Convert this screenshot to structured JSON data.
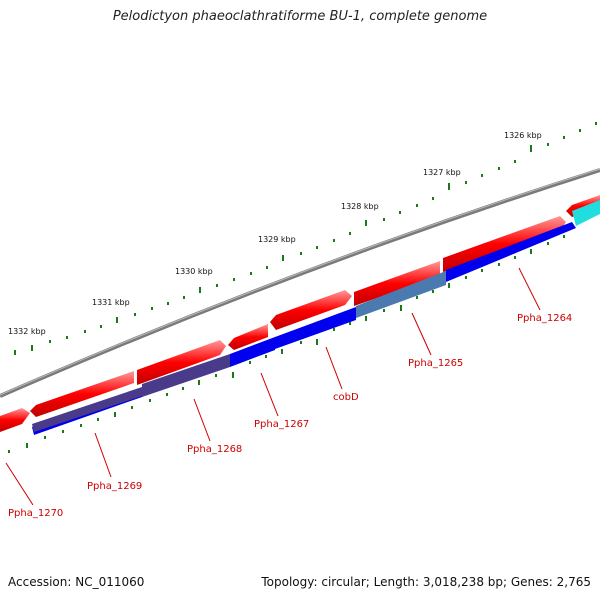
{
  "title": "Pelodictyon phaeoclathratiforme BU-1, complete genome",
  "footer": {
    "accession": "Accession: NC_011060",
    "summary": "Topology: circular; Length: 3,018,238 bp; Genes: 2,765"
  },
  "kbp_labels": [
    "1326 kbp",
    "1327 kbp",
    "1328 kbp",
    "1329 kbp",
    "1330 kbp",
    "1331 kbp",
    "1332 kbp"
  ],
  "gene_labels": [
    "Ppha_1264",
    "Ppha_1265",
    "cobD",
    "Ppha_1267",
    "Ppha_1268",
    "Ppha_1269",
    "Ppha_1270"
  ],
  "colors": {
    "backbone": "#777777",
    "gene_forward": "#ff0000",
    "cds_blue": "#0000ee",
    "cds_purple": "#4a3a8a",
    "cds_steel": "#4a7ab0",
    "cds_cyan": "#22dddd",
    "tick": "#1a7a1a",
    "label_red": "#cc0000"
  }
}
